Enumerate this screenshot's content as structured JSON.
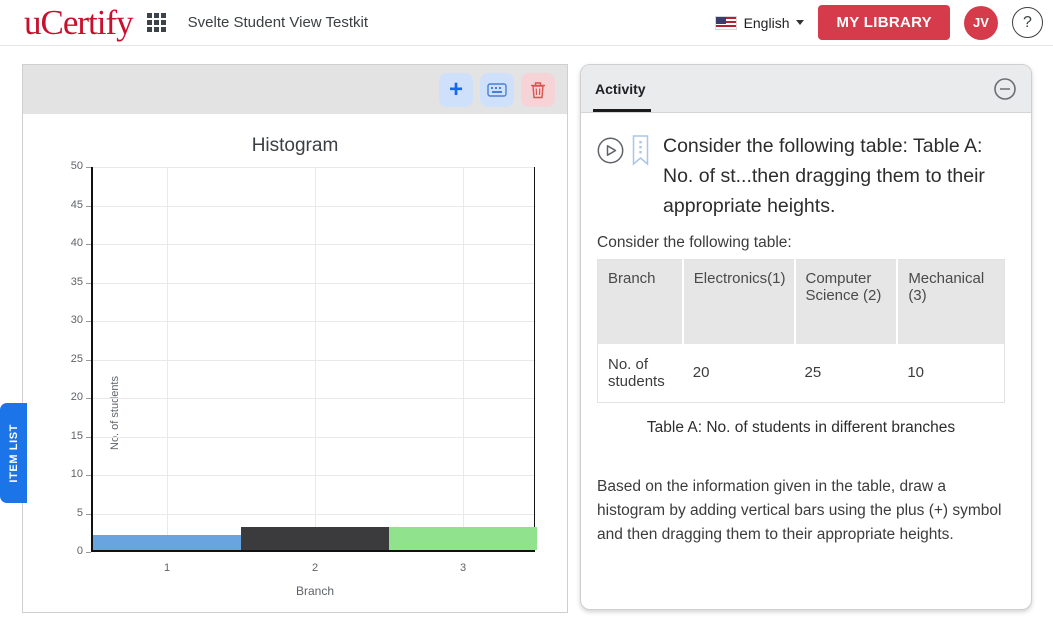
{
  "header": {
    "logo": "uCertify",
    "app_title": "Svelte Student View Testkit",
    "language_label": "English",
    "my_library_label": "MY LIBRARY",
    "avatar_initials": "JV",
    "help_label": "?"
  },
  "item_list_tab_label": "ITEM LIST",
  "toolbar": {
    "add_label": "+",
    "icons": [
      "plus-icon",
      "keyboard-icon",
      "trash-icon"
    ],
    "add_bg": "#cfe0fb",
    "delete_bg": "#f6d3d6"
  },
  "chart_data": {
    "type": "bar",
    "title": "Histogram",
    "xlabel": "Branch",
    "ylabel": "No. of students",
    "categories": [
      "1",
      "2",
      "3"
    ],
    "values": [
      2,
      3,
      3
    ],
    "bar_colors": [
      "#6aa4e0",
      "#3b3b3d",
      "#90e28c"
    ],
    "ylim": [
      0,
      50
    ],
    "ytick_step": 5,
    "grid": true,
    "legend": false
  },
  "activity": {
    "tab_label": "Activity",
    "question_title": "Consider the following table: Table A: No. of st...then dragging them to their appropriate heights.",
    "table_intro": "Consider the following table:",
    "table": {
      "headers": [
        "Branch",
        "Electronics(1)",
        "Computer Science (2)",
        "Mechanical (3)"
      ],
      "row_label": "No. of students",
      "values": [
        "20",
        "25",
        "10"
      ]
    },
    "caption": "Table A: No. of students in different branches",
    "instructions": "Based on the information given in the table, draw a histogram by adding vertical bars using the plus (+) symbol and then dragging them to their appropriate heights."
  }
}
